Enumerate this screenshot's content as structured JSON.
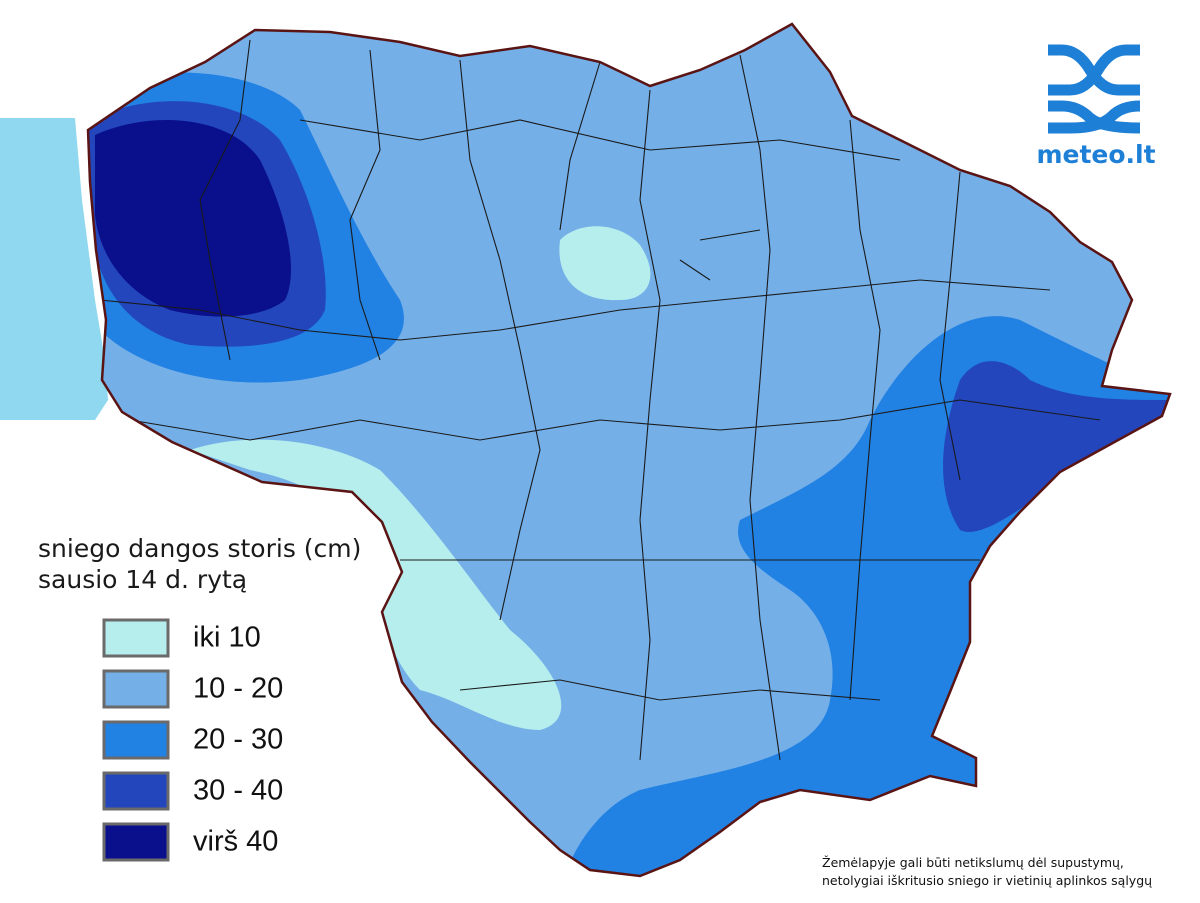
{
  "logo": {
    "text": "meteo.lt"
  },
  "legend": {
    "title": [
      "sniego dangos storis (cm)",
      "sausio 14 d. rytą"
    ],
    "items": [
      {
        "label": "iki 10",
        "color": "#b6eded"
      },
      {
        "label": "10 - 20",
        "color": "#74afe8"
      },
      {
        "label": "20 - 30",
        "color": "#2182e3"
      },
      {
        "label": "30 - 40",
        "color": "#2346bd"
      },
      {
        "label": "virš 40",
        "color": "#0a0f8c"
      }
    ]
  },
  "footnote": [
    "Žemėlapyje gali būti netikslumų dėl supustymų,",
    "netolygiai iškritusio sniego ir vietinių aplinkos sąlygų"
  ]
}
